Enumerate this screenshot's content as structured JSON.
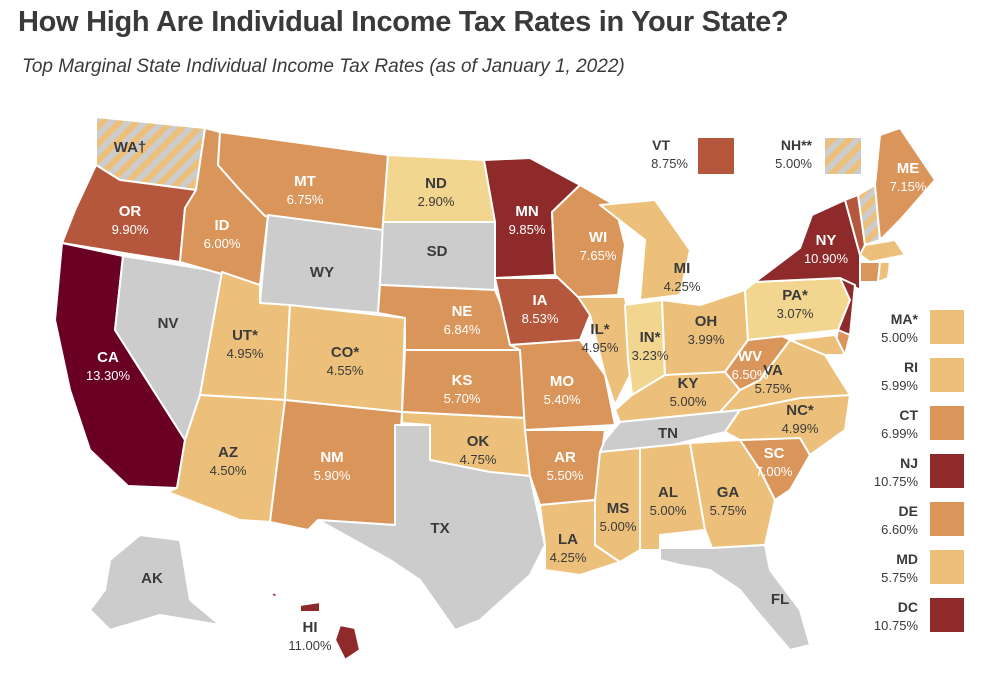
{
  "title": "How High Are Individual Income Tax Rates in Your State?",
  "subtitle": "Top Marginal State Individual Income Tax Rates (as of January 1, 2022)",
  "colors": {
    "none": "#cccccc",
    "light": "#f2d58f",
    "low": "#ecc07a",
    "mid": "#d9955a",
    "high": "#b5573d",
    "higher": "#8f2a2a",
    "highest": "#6b0025",
    "border": "#ffffff",
    "text_dark": "#3a3a3a"
  },
  "states": {
    "WA": {
      "label": "WA†",
      "rate": "",
      "fill": "none",
      "hatched": true
    },
    "OR": {
      "label": "OR",
      "rate": "9.90%",
      "fill": "high"
    },
    "CA": {
      "label": "CA",
      "rate": "13.30%",
      "fill": "highest"
    },
    "NV": {
      "label": "NV",
      "rate": "",
      "fill": "none"
    },
    "ID": {
      "label": "ID",
      "rate": "6.00%",
      "fill": "mid"
    },
    "MT": {
      "label": "MT",
      "rate": "6.75%",
      "fill": "mid"
    },
    "WY": {
      "label": "WY",
      "rate": "",
      "fill": "none"
    },
    "UT": {
      "label": "UT*",
      "rate": "4.95%",
      "fill": "low"
    },
    "AZ": {
      "label": "AZ",
      "rate": "4.50%",
      "fill": "low"
    },
    "CO": {
      "label": "CO*",
      "rate": "4.55%",
      "fill": "low"
    },
    "NM": {
      "label": "NM",
      "rate": "5.90%",
      "fill": "mid"
    },
    "ND": {
      "label": "ND",
      "rate": "2.90%",
      "fill": "light"
    },
    "SD": {
      "label": "SD",
      "rate": "",
      "fill": "none"
    },
    "NE": {
      "label": "NE",
      "rate": "6.84%",
      "fill": "mid"
    },
    "KS": {
      "label": "KS",
      "rate": "5.70%",
      "fill": "mid"
    },
    "OK": {
      "label": "OK",
      "rate": "4.75%",
      "fill": "low"
    },
    "TX": {
      "label": "TX",
      "rate": "",
      "fill": "none"
    },
    "MN": {
      "label": "MN",
      "rate": "9.85%",
      "fill": "higher"
    },
    "IA": {
      "label": "IA",
      "rate": "8.53%",
      "fill": "high"
    },
    "MO": {
      "label": "MO",
      "rate": "5.40%",
      "fill": "mid"
    },
    "AR": {
      "label": "AR",
      "rate": "5.50%",
      "fill": "mid"
    },
    "LA": {
      "label": "LA",
      "rate": "4.25%",
      "fill": "low"
    },
    "WI": {
      "label": "WI",
      "rate": "7.65%",
      "fill": "mid"
    },
    "IL": {
      "label": "IL*",
      "rate": "4.95%",
      "fill": "low"
    },
    "MI": {
      "label": "MI",
      "rate": "4.25%",
      "fill": "low"
    },
    "IN": {
      "label": "IN*",
      "rate": "3.23%",
      "fill": "light"
    },
    "OH": {
      "label": "OH",
      "rate": "3.99%",
      "fill": "low"
    },
    "KY": {
      "label": "KY",
      "rate": "5.00%",
      "fill": "low"
    },
    "TN": {
      "label": "TN",
      "rate": "",
      "fill": "none"
    },
    "MS": {
      "label": "MS",
      "rate": "5.00%",
      "fill": "low"
    },
    "AL": {
      "label": "AL",
      "rate": "5.00%",
      "fill": "low"
    },
    "GA": {
      "label": "GA",
      "rate": "5.75%",
      "fill": "low"
    },
    "FL": {
      "label": "FL",
      "rate": "",
      "fill": "none"
    },
    "SC": {
      "label": "SC",
      "rate": "7.00%",
      "fill": "mid"
    },
    "NC": {
      "label": "NC*",
      "rate": "4.99%",
      "fill": "low"
    },
    "VA": {
      "label": "VA",
      "rate": "5.75%",
      "fill": "low"
    },
    "WV": {
      "label": "WV",
      "rate": "6.50%",
      "fill": "mid"
    },
    "PA": {
      "label": "PA*",
      "rate": "3.07%",
      "fill": "light"
    },
    "NY": {
      "label": "NY",
      "rate": "10.90%",
      "fill": "higher"
    },
    "ME": {
      "label": "ME",
      "rate": "7.15%",
      "fill": "mid"
    },
    "AK": {
      "label": "AK",
      "rate": "",
      "fill": "none"
    },
    "HI": {
      "label": "HI",
      "rate": "11.00%",
      "fill": "higher"
    }
  },
  "callouts": [
    {
      "label": "VT",
      "rate": "8.75%",
      "fill": "high",
      "hatched": false
    },
    {
      "label": "NH**",
      "rate": "5.00%",
      "fill": "none",
      "hatched": true
    }
  ],
  "legend": [
    {
      "label": "MA*",
      "rate": "5.00%",
      "fill": "low"
    },
    {
      "label": "RI",
      "rate": "5.99%",
      "fill": "low"
    },
    {
      "label": "CT",
      "rate": "6.99%",
      "fill": "mid"
    },
    {
      "label": "NJ",
      "rate": "10.75%",
      "fill": "higher"
    },
    {
      "label": "DE",
      "rate": "6.60%",
      "fill": "mid"
    },
    {
      "label": "MD",
      "rate": "5.75%",
      "fill": "low"
    },
    {
      "label": "DC",
      "rate": "10.75%",
      "fill": "higher"
    }
  ]
}
